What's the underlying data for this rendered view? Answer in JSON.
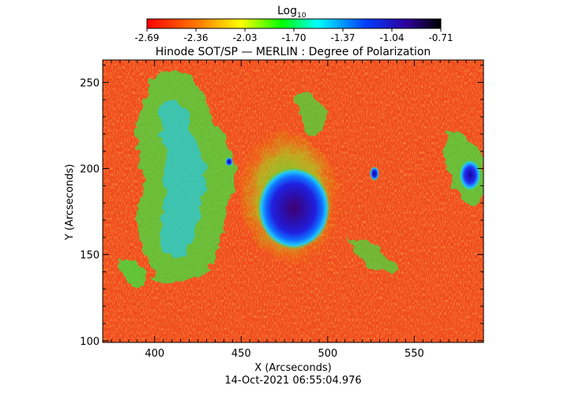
{
  "colorbar": {
    "title": "Log",
    "title_subscript": "10",
    "ticks": [
      "-2.69",
      "-2.36",
      "-2.03",
      "-1.70",
      "-1.37",
      "-1.04",
      "-0.71"
    ],
    "colors": [
      "#ff0000",
      "#ff8000",
      "#ffff00",
      "#00ff00",
      "#00ffff",
      "#0040ff",
      "#3000a0",
      "#000000"
    ]
  },
  "plot": {
    "title": "Hinode SOT/SP — MERLIN : Degree of Polarization",
    "xlabel": "X (Arcseconds)",
    "ylabel": "Y (Arcseconds)",
    "x_ticks": [
      "400",
      "450",
      "500",
      "550"
    ],
    "y_ticks": [
      "100",
      "150",
      "200",
      "250"
    ],
    "timestamp": "14-Oct-2021 06:55:04.976"
  },
  "image": {
    "description_colors": {
      "background": "#f04a1e",
      "quiet_light": "#ff9a10",
      "plage_green": "#40e040",
      "plage_cyan": "#20c8ff",
      "umbra_blue": "#2020e0",
      "umbra_core": "#400070"
    },
    "x_range": [
      370,
      590
    ],
    "y_range": [
      99,
      263
    ]
  }
}
